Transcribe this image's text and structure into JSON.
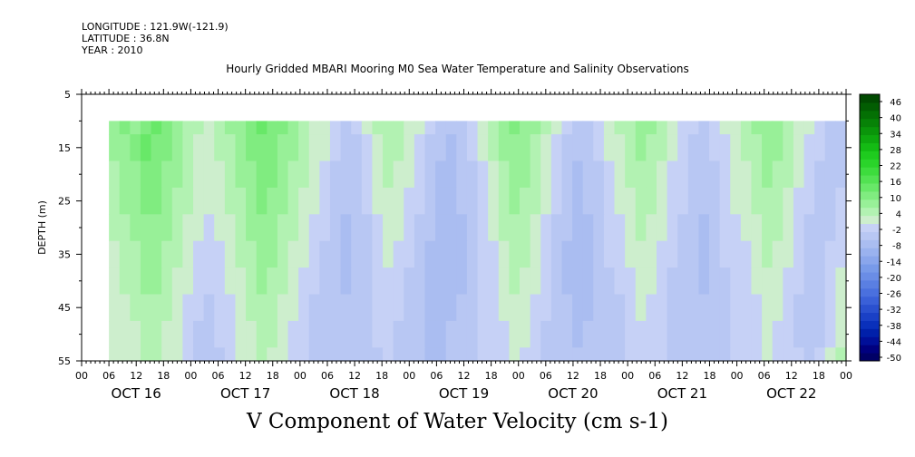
{
  "header": {
    "longitude": "LONGITUDE : 121.9W(-121.9)",
    "latitude": "LATITUDE : 36.8N",
    "year": "YEAR : 2010"
  },
  "chart_data": {
    "type": "heatmap",
    "title": "Hourly Gridded MBARI Mooring M0 Sea Water Temperature and Salinity Observations",
    "caption": "V Component of Water Velocity (cm s-1)",
    "xlabel": "",
    "ylabel": "DEPTH (m)",
    "x_range_hours": [
      0,
      168
    ],
    "ylim": [
      55,
      5
    ],
    "y_ticks": [
      5,
      15,
      25,
      35,
      45,
      55
    ],
    "data_depth_range": [
      10,
      55
    ],
    "data_start_hour": 6,
    "x_hour_labels": [
      "00",
      "06",
      "12",
      "18",
      "00",
      "06",
      "12",
      "18",
      "00",
      "06",
      "12",
      "18",
      "00",
      "06",
      "12",
      "18",
      "00",
      "06",
      "12",
      "18",
      "00",
      "06",
      "12",
      "18",
      "00",
      "06",
      "12",
      "18",
      "00"
    ],
    "date_labels": [
      "OCT 16",
      "OCT 17",
      "OCT 18",
      "OCT 19",
      "OCT 20",
      "OCT 21",
      "OCT 22"
    ],
    "colorbar": {
      "tick_labels": [
        "46",
        "40",
        "34",
        "28",
        "22",
        "16",
        "10",
        "4",
        "-2",
        "-8",
        "-14",
        "-20",
        "-26",
        "-32",
        "-38",
        "-44",
        "-50"
      ],
      "levels": [
        -50,
        -47,
        -44,
        -41,
        -38,
        -35,
        -32,
        -29,
        -26,
        -23,
        -20,
        -17,
        -14,
        -11,
        -8,
        -5,
        -2,
        1,
        4,
        7,
        10,
        13,
        16,
        19,
        22,
        25,
        28,
        31,
        34,
        37,
        40,
        43,
        46,
        49
      ],
      "colors": [
        "#000066",
        "#00007f",
        "#000f99",
        "#0020aa",
        "#0a30bb",
        "#1a40c6",
        "#2a50cf",
        "#3a60d8",
        "#4a70de",
        "#5a7fe2",
        "#6a8de6",
        "#789ae9",
        "#8aa6ec",
        "#9ab2ef",
        "#aabdf1",
        "#b8c7f3",
        "#c6d1f6",
        "#cdeecd",
        "#b2f2b2",
        "#98f098",
        "#80ec80",
        "#68e868",
        "#52e252",
        "#3ddc3d",
        "#2ad42a",
        "#1ecb1e",
        "#14bb14",
        "#0ea80e",
        "#0a950a",
        "#078207",
        "#047004",
        "#025d02",
        "#014a01"
      ]
    },
    "series": [
      {
        "depth": 10,
        "values": [
          8,
          10,
          9,
          12,
          14,
          11,
          9,
          6,
          4,
          3,
          5,
          7,
          9,
          11,
          13,
          12,
          10,
          8,
          6,
          3,
          2,
          -1,
          -3,
          -2,
          1,
          4,
          6,
          5,
          3,
          1,
          -2,
          -4,
          -5,
          -3,
          -1,
          2,
          5,
          8,
          10,
          9,
          7,
          4,
          1,
          -2,
          -4,
          -3,
          -1,
          2,
          4,
          6,
          8,
          7,
          5,
          2,
          0,
          -2,
          -3,
          -1,
          1,
          3,
          5,
          7,
          9,
          8,
          6,
          3,
          1,
          -1,
          -3,
          -4
        ]
      },
      {
        "depth": 15,
        "values": [
          7,
          9,
          10,
          13,
          12,
          10,
          8,
          5,
          3,
          2,
          4,
          6,
          8,
          10,
          12,
          11,
          9,
          7,
          5,
          2,
          1,
          -2,
          -4,
          -3,
          0,
          3,
          5,
          4,
          2,
          0,
          -3,
          -5,
          -6,
          -4,
          -2,
          1,
          4,
          7,
          9,
          8,
          6,
          3,
          0,
          -3,
          -5,
          -4,
          -2,
          1,
          3,
          5,
          7,
          6,
          4,
          1,
          -1,
          -3,
          -4,
          -2,
          0,
          2,
          4,
          6,
          8,
          7,
          5,
          2,
          0,
          -2,
          -4,
          -5
        ]
      },
      {
        "depth": 20,
        "values": [
          6,
          8,
          9,
          11,
          11,
          9,
          7,
          4,
          2,
          1,
          3,
          5,
          7,
          9,
          11,
          10,
          8,
          6,
          4,
          1,
          0,
          -3,
          -5,
          -4,
          -1,
          2,
          4,
          3,
          1,
          -1,
          -4,
          -6,
          -7,
          -5,
          -3,
          0,
          3,
          6,
          8,
          7,
          5,
          2,
          -1,
          -4,
          -6,
          -5,
          -3,
          0,
          2,
          4,
          6,
          5,
          3,
          0,
          -2,
          -4,
          -5,
          -3,
          -1,
          1,
          3,
          5,
          7,
          6,
          4,
          1,
          -1,
          -3,
          -4,
          -3
        ]
      },
      {
        "depth": 25,
        "values": [
          5,
          7,
          8,
          10,
          10,
          8,
          6,
          4,
          2,
          1,
          2,
          4,
          6,
          8,
          10,
          9,
          7,
          5,
          3,
          1,
          -1,
          -3,
          -5,
          -4,
          -2,
          1,
          3,
          2,
          0,
          -2,
          -4,
          -6,
          -7,
          -5,
          -3,
          -1,
          2,
          5,
          7,
          6,
          4,
          1,
          -2,
          -4,
          -6,
          -5,
          -3,
          -1,
          1,
          3,
          5,
          4,
          2,
          0,
          -2,
          -4,
          -5,
          -3,
          -1,
          1,
          2,
          4,
          6,
          5,
          3,
          0,
          -2,
          -3,
          -4,
          -2
        ]
      },
      {
        "depth": 30,
        "values": [
          4,
          6,
          7,
          9,
          9,
          7,
          5,
          3,
          1,
          0,
          1,
          3,
          5,
          7,
          9,
          8,
          6,
          4,
          2,
          0,
          -2,
          -4,
          -6,
          -5,
          -3,
          0,
          2,
          1,
          -1,
          -3,
          -5,
          -7,
          -8,
          -6,
          -4,
          -2,
          1,
          4,
          6,
          5,
          3,
          0,
          -3,
          -5,
          -7,
          -6,
          -4,
          -2,
          0,
          2,
          4,
          3,
          1,
          -1,
          -3,
          -5,
          -6,
          -4,
          -2,
          0,
          1,
          3,
          5,
          4,
          2,
          -1,
          -3,
          -4,
          -3,
          -1
        ]
      },
      {
        "depth": 35,
        "values": [
          3,
          5,
          6,
          8,
          8,
          6,
          4,
          2,
          0,
          -1,
          0,
          2,
          4,
          6,
          8,
          7,
          5,
          3,
          1,
          -1,
          -3,
          -5,
          -6,
          -5,
          -3,
          -1,
          1,
          0,
          -2,
          -4,
          -6,
          -7,
          -7,
          -6,
          -4,
          -2,
          0,
          3,
          5,
          4,
          2,
          -1,
          -4,
          -6,
          -7,
          -6,
          -4,
          -2,
          -1,
          1,
          3,
          2,
          0,
          -2,
          -4,
          -5,
          -6,
          -4,
          -2,
          -1,
          0,
          2,
          4,
          3,
          1,
          -2,
          -4,
          -4,
          -2,
          0
        ]
      },
      {
        "depth": 40,
        "values": [
          3,
          4,
          5,
          7,
          7,
          5,
          3,
          1,
          -1,
          -2,
          -1,
          1,
          3,
          5,
          7,
          6,
          4,
          2,
          0,
          -2,
          -4,
          -5,
          -6,
          -5,
          -4,
          -2,
          0,
          -1,
          -3,
          -5,
          -6,
          -7,
          -7,
          -6,
          -4,
          -2,
          -1,
          2,
          4,
          3,
          1,
          -2,
          -4,
          -6,
          -7,
          -6,
          -5,
          -3,
          -2,
          0,
          2,
          1,
          -1,
          -3,
          -4,
          -5,
          -6,
          -4,
          -3,
          -2,
          -1,
          1,
          3,
          2,
          0,
          -2,
          -4,
          -4,
          -2,
          1
        ]
      },
      {
        "depth": 45,
        "values": [
          2,
          3,
          4,
          6,
          6,
          4,
          2,
          0,
          -2,
          -3,
          -2,
          0,
          2,
          4,
          6,
          5,
          3,
          1,
          -1,
          -3,
          -4,
          -5,
          -5,
          -4,
          -3,
          -2,
          -1,
          -2,
          -4,
          -5,
          -6,
          -6,
          -6,
          -5,
          -4,
          -2,
          -1,
          1,
          3,
          2,
          0,
          -2,
          -4,
          -5,
          -6,
          -6,
          -5,
          -4,
          -3,
          -1,
          1,
          0,
          -2,
          -3,
          -4,
          -5,
          -5,
          -4,
          -3,
          -2,
          -1,
          0,
          2,
          1,
          -1,
          -3,
          -4,
          -3,
          -1,
          2
        ]
      },
      {
        "depth": 50,
        "values": [
          1,
          2,
          3,
          5,
          5,
          3,
          1,
          -1,
          -3,
          -3,
          -2,
          -1,
          1,
          3,
          5,
          4,
          2,
          0,
          -2,
          -3,
          -4,
          -5,
          -5,
          -4,
          -3,
          -2,
          -2,
          -3,
          -4,
          -5,
          -6,
          -6,
          -5,
          -4,
          -3,
          -2,
          -1,
          0,
          2,
          1,
          -1,
          -3,
          -4,
          -5,
          -6,
          -5,
          -5,
          -4,
          -3,
          -2,
          0,
          -1,
          -2,
          -3,
          -4,
          -5,
          -5,
          -4,
          -3,
          -2,
          -1,
          0,
          1,
          0,
          -1,
          -3,
          -4,
          -3,
          0,
          3
        ]
      },
      {
        "depth": 55,
        "values": [
          1,
          2,
          3,
          4,
          4,
          3,
          1,
          -1,
          -3,
          -4,
          -3,
          -1,
          1,
          2,
          4,
          3,
          1,
          0,
          -2,
          -3,
          -4,
          -5,
          -5,
          -4,
          -3,
          -3,
          -2,
          -3,
          -4,
          -5,
          -6,
          -6,
          -5,
          -4,
          -3,
          -2,
          -1,
          0,
          1,
          0,
          -2,
          -3,
          -4,
          -5,
          -5,
          -5,
          -4,
          -4,
          -3,
          -2,
          -1,
          -1,
          -2,
          -3,
          -4,
          -5,
          -5,
          -4,
          -3,
          -2,
          -1,
          0,
          1,
          0,
          -1,
          -2,
          -3,
          -2,
          1,
          4
        ]
      }
    ]
  }
}
